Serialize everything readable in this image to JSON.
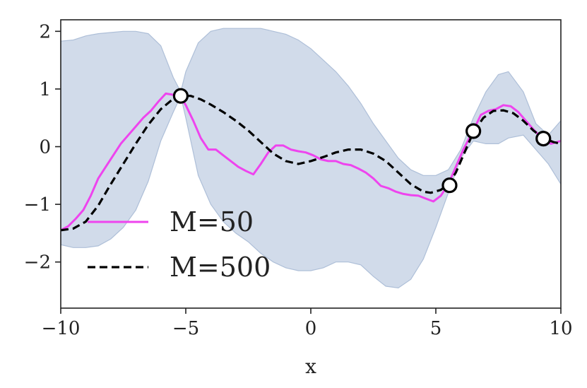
{
  "chart_data": {
    "type": "line",
    "title": "",
    "xlabel": "x",
    "ylabel": "",
    "xlim": [
      -10,
      10
    ],
    "ylim": [
      -2.8,
      2.2
    ],
    "xticks": [
      -10,
      -5,
      0,
      5,
      10
    ],
    "xtick_labels": [
      "−10",
      "−5",
      "0",
      "5",
      "10"
    ],
    "yticks": [
      -2,
      -1,
      0,
      1,
      2
    ],
    "ytick_labels": [
      "−2",
      "−1",
      "0",
      "1",
      "2"
    ],
    "grid": false,
    "legend_position": "lower-left",
    "colors": {
      "m50": "#ee44ee",
      "m500": "#000000",
      "band_fill": "#c9d5e6",
      "band_edge": "#aebfd8",
      "axes": "#222222"
    },
    "band": {
      "name": "uncertainty",
      "x": [
        -10,
        -9.5,
        -9,
        -8.5,
        -8,
        -7.5,
        -7,
        -6.5,
        -6,
        -5.5,
        -5.2,
        -5,
        -4.5,
        -4,
        -3.5,
        -3,
        -2.5,
        -2,
        -1.5,
        -1,
        -0.5,
        0,
        0.5,
        1,
        1.5,
        2,
        2.5,
        3,
        3.5,
        4,
        4.5,
        5,
        5.5,
        6,
        6.5,
        7,
        7.5,
        7.9,
        8.5,
        9,
        9.5,
        10
      ],
      "upper": [
        1.83,
        1.85,
        1.92,
        1.96,
        1.98,
        2.0,
        2.0,
        1.96,
        1.75,
        1.2,
        0.95,
        1.3,
        1.8,
        2.0,
        2.05,
        2.05,
        2.05,
        2.05,
        2.0,
        1.95,
        1.85,
        1.7,
        1.5,
        1.3,
        1.05,
        0.75,
        0.4,
        0.1,
        -0.2,
        -0.4,
        -0.5,
        -0.5,
        -0.4,
        -0.05,
        0.5,
        0.95,
        1.25,
        1.3,
        0.95,
        0.4,
        0.2,
        0.45
      ],
      "lower": [
        -1.7,
        -1.75,
        -1.75,
        -1.72,
        -1.6,
        -1.4,
        -1.1,
        -0.6,
        0.1,
        0.6,
        0.88,
        0.5,
        -0.5,
        -1.0,
        -1.3,
        -1.5,
        -1.65,
        -1.85,
        -2.0,
        -2.1,
        -2.15,
        -2.15,
        -2.1,
        -2.0,
        -2.0,
        -2.05,
        -2.25,
        -2.42,
        -2.45,
        -2.3,
        -1.95,
        -1.4,
        -0.8,
        -0.2,
        0.1,
        0.05,
        0.05,
        0.15,
        0.2,
        -0.05,
        -0.3,
        -0.65
      ]
    },
    "series": [
      {
        "name": "M=50",
        "style": "solid",
        "x": [
          -10,
          -9.7,
          -9.4,
          -9.1,
          -8.8,
          -8.5,
          -8.2,
          -7.9,
          -7.6,
          -7.3,
          -7.0,
          -6.7,
          -6.4,
          -6.1,
          -5.8,
          -5.5,
          -5.2,
          -5.0,
          -4.7,
          -4.4,
          -4.1,
          -3.8,
          -3.5,
          -3.2,
          -2.9,
          -2.6,
          -2.3,
          -2.0,
          -1.7,
          -1.4,
          -1.1,
          -0.8,
          -0.5,
          -0.2,
          0.1,
          0.4,
          0.7,
          1.0,
          1.3,
          1.6,
          1.9,
          2.2,
          2.5,
          2.8,
          3.1,
          3.4,
          3.7,
          4.0,
          4.3,
          4.6,
          4.9,
          5.2,
          5.5,
          5.8,
          6.1,
          6.5,
          6.8,
          7.1,
          7.4,
          7.7,
          8.0,
          8.3,
          8.6,
          8.9,
          9.3,
          9.6,
          10.0
        ],
        "y": [
          -1.45,
          -1.38,
          -1.25,
          -1.1,
          -0.85,
          -0.55,
          -0.35,
          -0.15,
          0.05,
          0.2,
          0.35,
          0.5,
          0.62,
          0.78,
          0.92,
          0.9,
          0.86,
          0.72,
          0.45,
          0.15,
          -0.05,
          -0.05,
          -0.15,
          -0.25,
          -0.35,
          -0.42,
          -0.48,
          -0.3,
          -0.1,
          0.02,
          0.02,
          -0.05,
          -0.08,
          -0.1,
          -0.15,
          -0.22,
          -0.25,
          -0.25,
          -0.3,
          -0.32,
          -0.38,
          -0.45,
          -0.55,
          -0.68,
          -0.72,
          -0.78,
          -0.82,
          -0.84,
          -0.85,
          -0.9,
          -0.95,
          -0.85,
          -0.65,
          -0.35,
          -0.05,
          0.28,
          0.55,
          0.62,
          0.65,
          0.72,
          0.7,
          0.6,
          0.45,
          0.3,
          0.12,
          0.05,
          0.1
        ]
      },
      {
        "name": "M=500",
        "style": "dashed",
        "x": [
          -10,
          -9.5,
          -9.0,
          -8.5,
          -8.0,
          -7.5,
          -7.0,
          -6.5,
          -6.0,
          -5.5,
          -5.2,
          -4.8,
          -4.4,
          -4.0,
          -3.5,
          -3.0,
          -2.5,
          -2.0,
          -1.5,
          -1.0,
          -0.5,
          0.0,
          0.5,
          1.0,
          1.5,
          2.0,
          2.5,
          3.0,
          3.5,
          4.0,
          4.5,
          4.8,
          5.2,
          5.5,
          5.8,
          6.1,
          6.5,
          6.9,
          7.3,
          7.7,
          8.1,
          8.5,
          8.9,
          9.3,
          9.7,
          10.0
        ],
        "y": [
          -1.45,
          -1.42,
          -1.3,
          -1.02,
          -0.65,
          -0.3,
          0.05,
          0.38,
          0.65,
          0.83,
          0.88,
          0.88,
          0.82,
          0.73,
          0.6,
          0.45,
          0.28,
          0.08,
          -0.12,
          -0.25,
          -0.3,
          -0.25,
          -0.18,
          -0.1,
          -0.05,
          -0.05,
          -0.12,
          -0.25,
          -0.45,
          -0.65,
          -0.78,
          -0.8,
          -0.75,
          -0.65,
          -0.45,
          -0.15,
          0.25,
          0.5,
          0.62,
          0.63,
          0.58,
          0.45,
          0.28,
          0.15,
          0.08,
          0.05
        ]
      }
    ],
    "observations": {
      "name": "observed points",
      "x": [
        -5.2,
        5.55,
        6.5,
        9.3
      ],
      "y": [
        0.88,
        -0.67,
        0.27,
        0.14
      ]
    },
    "legend": [
      {
        "label": "M=50",
        "style": "solid"
      },
      {
        "label": "M=500",
        "style": "dashed"
      }
    ]
  }
}
